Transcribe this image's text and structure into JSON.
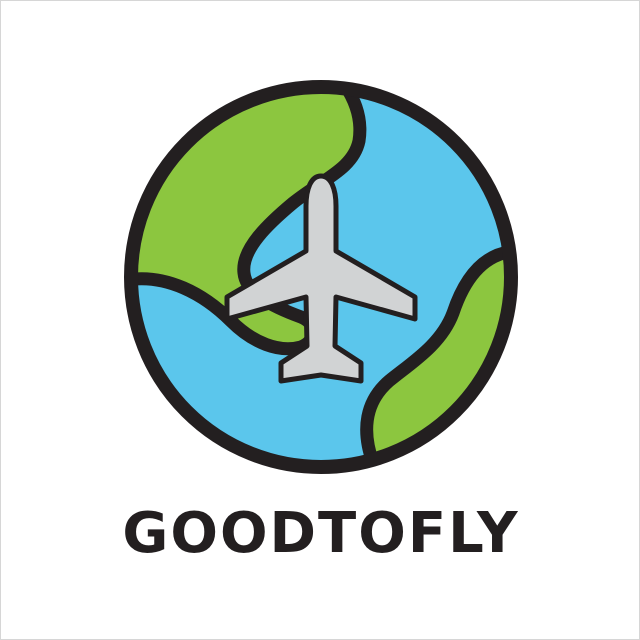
{
  "brand": {
    "name": "GOODTOFLY"
  },
  "logo": {
    "globe_icon": "globe-icon",
    "airplane_icon": "airplane-icon",
    "colors": {
      "outline": "#231f20",
      "ocean": "#5bc6ec",
      "land": "#8cc63f",
      "airplane": "#d1d3d4",
      "background": "#ffffff"
    }
  }
}
